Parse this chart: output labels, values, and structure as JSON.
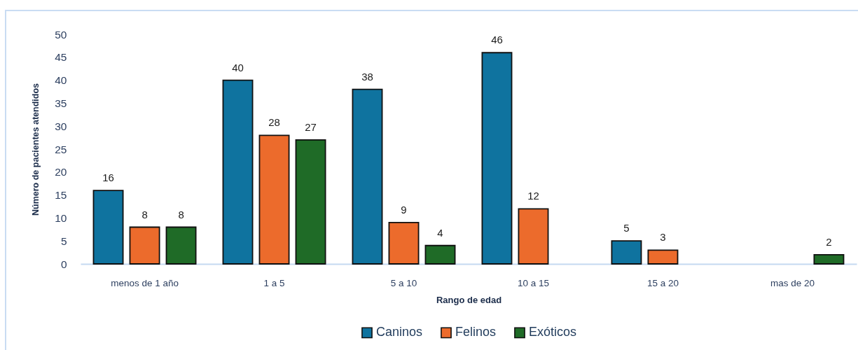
{
  "chart_data": {
    "type": "bar",
    "xlabel": "Rango de edad",
    "ylabel": "Número de pacientes atendidos",
    "categories": [
      "menos de 1 año",
      "1 a 5",
      "5 a 10",
      "10 a 15",
      "15 a 20",
      "mas de 20"
    ],
    "series": [
      {
        "name": "Caninos",
        "color": "#0f739f",
        "values": [
          16,
          40,
          38,
          46,
          5,
          null
        ]
      },
      {
        "name": "Felinos",
        "color": "#ec6b2c",
        "values": [
          8,
          28,
          9,
          12,
          3,
          null
        ]
      },
      {
        "name": "Exóticos",
        "color": "#1f6b27",
        "values": [
          8,
          27,
          4,
          null,
          null,
          2
        ]
      }
    ],
    "ylim": [
      0,
      50
    ],
    "yticks": [
      0,
      5,
      10,
      15,
      20,
      25,
      30,
      35,
      40,
      45,
      50
    ],
    "data_labels": true,
    "legend": "bottom"
  }
}
